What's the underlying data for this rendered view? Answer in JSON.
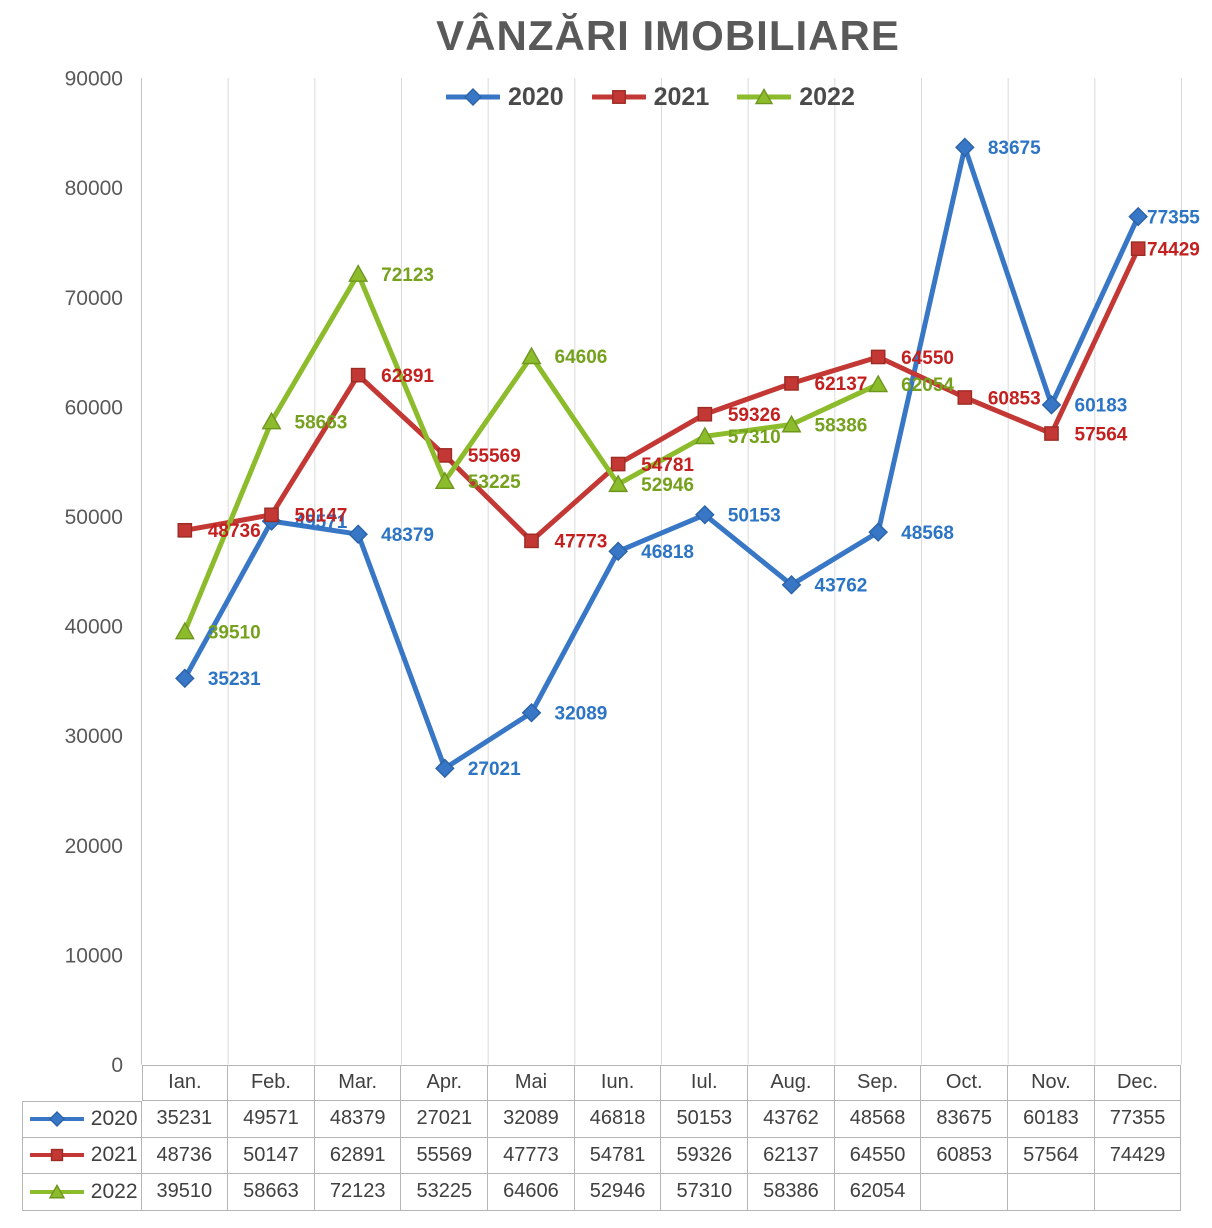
{
  "chart_data": {
    "type": "line",
    "title": "VÂNZĂRI IMOBILIARE",
    "categories": [
      "Ian.",
      "Feb.",
      "Mar.",
      "Apr.",
      "Mai",
      "Iun.",
      "Iul.",
      "Aug.",
      "Sep.",
      "Oct.",
      "Nov.",
      "Dec."
    ],
    "series": [
      {
        "name": "2020",
        "marker": "diamond",
        "color": "#3876C6",
        "edge_color": "#2B63A8",
        "label_color": "#2C74C4",
        "values": [
          35231,
          49571,
          48379,
          27021,
          32089,
          46818,
          50153,
          43762,
          48568,
          83675,
          60183,
          77355
        ]
      },
      {
        "name": "2021",
        "marker": "square",
        "color": "#C33834",
        "edge_color": "#9C2B24",
        "label_color": "#C32020",
        "values": [
          48736,
          50147,
          62891,
          55569,
          47773,
          54781,
          59326,
          62137,
          64550,
          60853,
          57564,
          74429
        ]
      },
      {
        "name": "2022",
        "marker": "triangle",
        "color": "#8CBB2B",
        "edge_color": "#6E961F",
        "label_color": "#75A11D",
        "values": [
          39510,
          58663,
          72123,
          53225,
          64606,
          52946,
          57310,
          58386,
          62054,
          null,
          null,
          null
        ]
      }
    ],
    "ylim": [
      0,
      90000
    ],
    "y_ticks": [
      90000,
      80000,
      70000,
      60000,
      50000,
      40000,
      30000,
      20000,
      10000,
      0
    ],
    "grid": "vertical-only",
    "legend_position": "top",
    "data_labels": "right-of-point"
  },
  "colors": {
    "title_text": "#595959",
    "axis_text": "#595959",
    "table_text": "#404040",
    "legend_text": "#4A4A4A",
    "gridline": "#D9D9D9",
    "axis_line": "#C3C3C3",
    "table_border": "#B5B5B5"
  }
}
